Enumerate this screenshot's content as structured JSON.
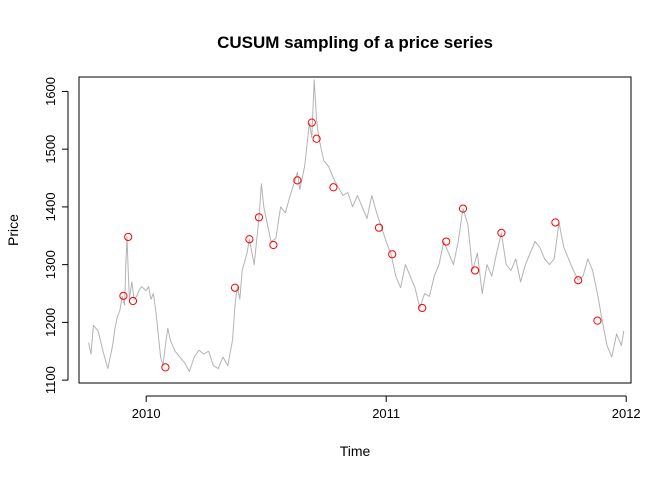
{
  "chart_data": {
    "type": "line",
    "title": "CUSUM sampling of a price series",
    "xlabel": "Time",
    "ylabel": "Price",
    "xlim": [
      2009.72,
      2012.02
    ],
    "ylim": [
      1095,
      1625
    ],
    "x_ticks": [
      2010,
      2011,
      2012
    ],
    "x_tick_labels": [
      "2010",
      "2011",
      "2012"
    ],
    "y_ticks": [
      1100,
      1200,
      1300,
      1400,
      1500,
      1600
    ],
    "y_tick_labels": [
      "1100",
      "1200",
      "1300",
      "1400",
      "1500",
      "1600"
    ],
    "grid": false,
    "series": [
      {
        "style": "line",
        "color": "#b3b3b3",
        "x": [
          2009.76,
          2009.77,
          2009.78,
          2009.79,
          2009.8,
          2009.82,
          2009.84,
          2009.86,
          2009.87,
          2009.88,
          2009.89,
          2009.9,
          2009.91,
          2009.915,
          2009.92,
          2009.925,
          2009.93,
          2009.94,
          2009.95,
          2009.96,
          2009.97,
          2009.98,
          2010.0,
          2010.01,
          2010.02,
          2010.03,
          2010.04,
          2010.05,
          2010.06,
          2010.07,
          2010.08,
          2010.09,
          2010.1,
          2010.12,
          2010.14,
          2010.16,
          2010.18,
          2010.2,
          2010.22,
          2010.24,
          2010.26,
          2010.28,
          2010.3,
          2010.32,
          2010.34,
          2010.36,
          2010.37,
          2010.38,
          2010.39,
          2010.4,
          2010.42,
          2010.43,
          2010.45,
          2010.47,
          2010.48,
          2010.49,
          2010.5,
          2010.52,
          2010.54,
          2010.56,
          2010.58,
          2010.6,
          2010.62,
          2010.63,
          2010.64,
          2010.66,
          2010.68,
          2010.69,
          2010.7,
          2010.71,
          2010.72,
          2010.74,
          2010.76,
          2010.78,
          2010.8,
          2010.82,
          2010.84,
          2010.86,
          2010.88,
          2010.9,
          2010.92,
          2010.94,
          2010.96,
          2010.98,
          2011.0,
          2011.02,
          2011.04,
          2011.06,
          2011.08,
          2011.1,
          2011.12,
          2011.14,
          2011.16,
          2011.18,
          2011.2,
          2011.22,
          2011.24,
          2011.26,
          2011.28,
          2011.3,
          2011.32,
          2011.34,
          2011.36,
          2011.38,
          2011.4,
          2011.42,
          2011.44,
          2011.46,
          2011.48,
          2011.5,
          2011.52,
          2011.54,
          2011.56,
          2011.58,
          2011.6,
          2011.62,
          2011.64,
          2011.66,
          2011.68,
          2011.7,
          2011.72,
          2011.74,
          2011.76,
          2011.78,
          2011.8,
          2011.82,
          2011.84,
          2011.86,
          2011.88,
          2011.9,
          2011.92,
          2011.94,
          2011.96,
          2011.98,
          2011.99
        ],
        "y": [
          1165,
          1145,
          1195,
          1190,
          1185,
          1150,
          1120,
          1160,
          1190,
          1210,
          1220,
          1245,
          1230,
          1300,
          1348,
          1290,
          1240,
          1270,
          1240,
          1245,
          1255,
          1262,
          1255,
          1262,
          1240,
          1250,
          1220,
          1180,
          1140,
          1125,
          1160,
          1190,
          1170,
          1150,
          1140,
          1130,
          1115,
          1140,
          1152,
          1145,
          1150,
          1125,
          1120,
          1140,
          1125,
          1170,
          1230,
          1262,
          1240,
          1290,
          1320,
          1344,
          1300,
          1382,
          1440,
          1400,
          1380,
          1340,
          1345,
          1400,
          1390,
          1420,
          1446,
          1460,
          1430,
          1470,
          1545,
          1520,
          1620,
          1550,
          1518,
          1480,
          1470,
          1450,
          1434,
          1420,
          1425,
          1400,
          1420,
          1400,
          1380,
          1420,
          1390,
          1365,
          1340,
          1318,
          1280,
          1260,
          1300,
          1280,
          1260,
          1225,
          1250,
          1245,
          1280,
          1300,
          1340,
          1320,
          1300,
          1340,
          1397,
          1370,
          1290,
          1320,
          1250,
          1300,
          1280,
          1320,
          1355,
          1300,
          1290,
          1310,
          1270,
          1300,
          1320,
          1340,
          1330,
          1310,
          1300,
          1310,
          1373,
          1330,
          1310,
          1290,
          1273,
          1280,
          1310,
          1290,
          1250,
          1203,
          1160,
          1140,
          1180,
          1160,
          1185
        ]
      },
      {
        "style": "points",
        "color": "#ff0000",
        "x": [
          2009.905,
          2009.925,
          2009.945,
          2010.08,
          2010.37,
          2010.43,
          2010.47,
          2010.53,
          2010.63,
          2010.69,
          2010.71,
          2010.78,
          2010.97,
          2011.025,
          2011.15,
          2011.25,
          2011.32,
          2011.37,
          2011.48,
          2011.705,
          2011.8,
          2011.88
        ],
        "y": [
          1246,
          1348,
          1237,
          1122,
          1260,
          1344,
          1382,
          1334,
          1446,
          1546,
          1518,
          1434,
          1364,
          1318,
          1225,
          1340,
          1397,
          1290,
          1355,
          1373,
          1273,
          1203
        ]
      }
    ]
  }
}
